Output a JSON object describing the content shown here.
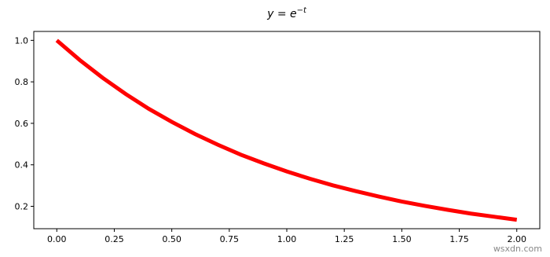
{
  "chart_data": {
    "type": "line",
    "title": "y = e",
    "title_exponent": "−t",
    "x": [
      0,
      0.1,
      0.2,
      0.3,
      0.4,
      0.5,
      0.6,
      0.7,
      0.8,
      0.9,
      1.0,
      1.1,
      1.2,
      1.3,
      1.4,
      1.5,
      1.6,
      1.7,
      1.8,
      1.9,
      2.0
    ],
    "series": [
      {
        "color": "#ff0000",
        "values": [
          1.0,
          0.905,
          0.819,
          0.741,
          0.67,
          0.607,
          0.549,
          0.497,
          0.449,
          0.407,
          0.368,
          0.333,
          0.301,
          0.273,
          0.247,
          0.223,
          0.202,
          0.183,
          0.165,
          0.15,
          0.135
        ]
      }
    ],
    "xlim": [
      -0.1,
      2.1
    ],
    "xticks": [
      {
        "value": 0,
        "label": "0.00"
      },
      {
        "value": 0.25,
        "label": "0.25"
      },
      {
        "value": 0.5,
        "label": "0.50"
      },
      {
        "value": 0.75,
        "label": "0.75"
      },
      {
        "value": 1,
        "label": "1.00"
      },
      {
        "value": 1.25,
        "label": "1.25"
      },
      {
        "value": 1.5,
        "label": "1.50"
      },
      {
        "value": 1.75,
        "label": "1.75"
      },
      {
        "value": 2,
        "label": "2.00"
      }
    ],
    "ylim": [
      0.092,
      1.043
    ],
    "yticks": [
      0.2,
      0.4,
      0.6,
      0.8,
      {
        "value": 1,
        "label": "1.0"
      }
    ],
    "grid": false
  },
  "watermark": "wsxdn.com"
}
